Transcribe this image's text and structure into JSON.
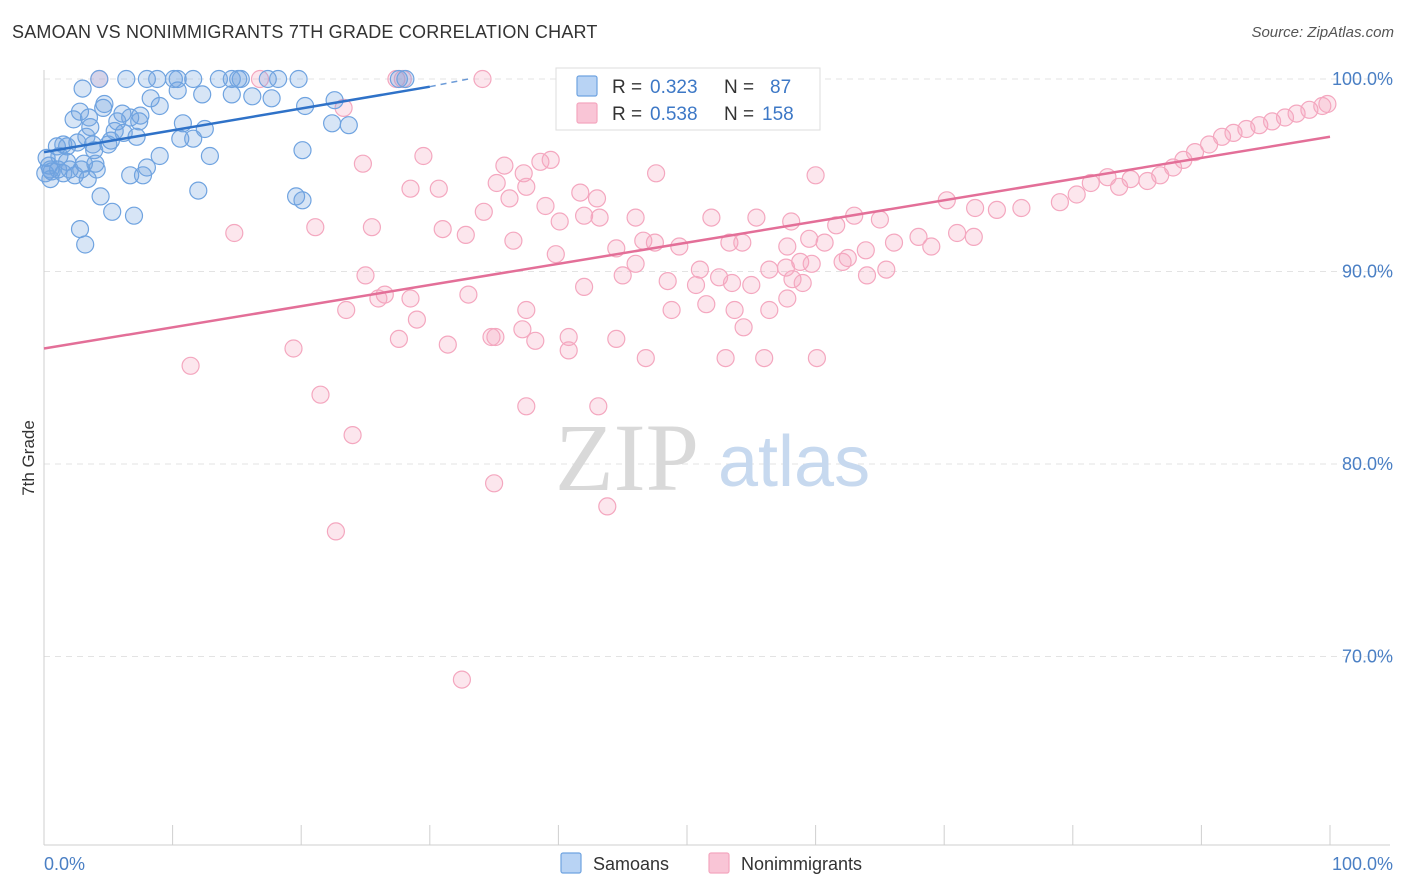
{
  "header": {
    "title": "SAMOAN VS NONIMMIGRANTS 7TH GRADE CORRELATION CHART",
    "source": "Source: ZipAtlas.com"
  },
  "watermark": {
    "zip": "ZIP",
    "atlas": "atlas"
  },
  "colors": {
    "samoans": "#6fa3e0",
    "samoans_line": "#2f72c8",
    "nonimmigrants": "#f4a7bf",
    "nonimmigrants_line": "#e36f98",
    "tick_text": "#4a7fc4",
    "grid": "#e3e3e3"
  },
  "stats": {
    "samoans": {
      "r_label": "R =",
      "r_value": "0.323",
      "n_label": "N =",
      "n_value": "87"
    },
    "nonimmigrants": {
      "r_label": "R =",
      "r_value": "0.538",
      "n_label": "N =",
      "n_value": "158"
    }
  },
  "chart_data": {
    "type": "scatter",
    "title": "SAMOAN VS NONIMMIGRANTS 7TH GRADE CORRELATION CHART",
    "xlabel": "",
    "ylabel": "7th Grade",
    "xlim": [
      0,
      100
    ],
    "ylim": [
      62,
      100.5
    ],
    "x_tick_labels": [
      "0.0%",
      "100.0%"
    ],
    "y_ticks": [
      {
        "value": 100,
        "label": "100.0%"
      },
      {
        "value": 90,
        "label": "90.0%"
      },
      {
        "value": 80,
        "label": "80.0%"
      },
      {
        "value": 70,
        "label": "70.0%"
      }
    ],
    "grid": true,
    "legend": "bottom",
    "series": [
      {
        "name": "Samoans",
        "color": "#6fa3e0",
        "trend": {
          "x": [
            0,
            30
          ],
          "y": [
            96.2,
            99.6
          ],
          "dashed_to": [
            33,
            100.0
          ]
        },
        "points": [
          [
            4.3,
            100
          ],
          [
            6.4,
            100
          ],
          [
            8.0,
            100
          ],
          [
            8.8,
            100
          ],
          [
            10.1,
            100
          ],
          [
            10.4,
            100
          ],
          [
            11.6,
            100
          ],
          [
            13.6,
            100
          ],
          [
            14.6,
            100
          ],
          [
            15.1,
            100
          ],
          [
            15.3,
            100
          ],
          [
            17.4,
            100
          ],
          [
            18.2,
            100
          ],
          [
            19.8,
            100
          ],
          [
            27.6,
            100
          ],
          [
            28.1,
            100
          ],
          [
            3.0,
            99.5
          ],
          [
            10.4,
            99.4
          ],
          [
            8.3,
            99.0
          ],
          [
            12.3,
            99.2
          ],
          [
            14.6,
            99.2
          ],
          [
            16.2,
            99.1
          ],
          [
            17.7,
            99.0
          ],
          [
            22.6,
            98.9
          ],
          [
            4.7,
            98.7
          ],
          [
            9.0,
            98.6
          ],
          [
            20.3,
            98.6
          ],
          [
            2.8,
            98.3
          ],
          [
            4.6,
            98.5
          ],
          [
            6.1,
            98.2
          ],
          [
            7.5,
            98.1
          ],
          [
            6.7,
            98.0
          ],
          [
            3.5,
            98.0
          ],
          [
            2.3,
            97.9
          ],
          [
            5.7,
            97.8
          ],
          [
            7.4,
            97.8
          ],
          [
            10.8,
            97.7
          ],
          [
            22.4,
            97.7
          ],
          [
            23.7,
            97.6
          ],
          [
            3.6,
            97.5
          ],
          [
            5.5,
            97.3
          ],
          [
            12.5,
            97.4
          ],
          [
            6.2,
            97.2
          ],
          [
            3.3,
            97.0
          ],
          [
            7.2,
            97.0
          ],
          [
            10.6,
            96.9
          ],
          [
            11.6,
            96.9
          ],
          [
            5.2,
            96.8
          ],
          [
            1.5,
            96.6
          ],
          [
            2.6,
            96.7
          ],
          [
            3.8,
            96.6
          ],
          [
            5.0,
            96.6
          ],
          [
            1.0,
            96.5
          ],
          [
            1.8,
            96.5
          ],
          [
            3.9,
            96.3
          ],
          [
            20.1,
            96.3
          ],
          [
            12.9,
            96.0
          ],
          [
            9.0,
            96.0
          ],
          [
            1.2,
            96.0
          ],
          [
            0.2,
            95.9
          ],
          [
            1.8,
            95.7
          ],
          [
            3.1,
            95.6
          ],
          [
            4.0,
            95.6
          ],
          [
            0.4,
            95.5
          ],
          [
            8.0,
            95.4
          ],
          [
            0.5,
            95.3
          ],
          [
            1.1,
            95.3
          ],
          [
            2.0,
            95.3
          ],
          [
            2.9,
            95.3
          ],
          [
            4.1,
            95.3
          ],
          [
            0.6,
            95.2
          ],
          [
            0.1,
            95.1
          ],
          [
            1.5,
            95.1
          ],
          [
            2.4,
            95.0
          ],
          [
            6.7,
            95.0
          ],
          [
            7.7,
            95.0
          ],
          [
            0.5,
            94.8
          ],
          [
            3.4,
            94.8
          ],
          [
            12.0,
            94.2
          ],
          [
            4.4,
            93.9
          ],
          [
            19.6,
            93.9
          ],
          [
            20.1,
            93.7
          ],
          [
            5.3,
            93.1
          ],
          [
            7.0,
            92.9
          ],
          [
            2.8,
            92.2
          ],
          [
            3.2,
            91.4
          ]
        ]
      },
      {
        "name": "Nonimmigrants",
        "color": "#f4a7bf",
        "trend": {
          "x": [
            0,
            100
          ],
          "y": [
            86.0,
            97.0
          ]
        },
        "points": [
          [
            4.3,
            100
          ],
          [
            16.8,
            100
          ],
          [
            27.4,
            100
          ],
          [
            27.9,
            100
          ],
          [
            34.1,
            100
          ],
          [
            23.3,
            98.5
          ],
          [
            29.5,
            96.0
          ],
          [
            24.8,
            95.6
          ],
          [
            38.6,
            95.7
          ],
          [
            39.4,
            95.8
          ],
          [
            35.8,
            95.5
          ],
          [
            37.3,
            95.1
          ],
          [
            35.2,
            94.6
          ],
          [
            37.5,
            94.4
          ],
          [
            47.6,
            95.1
          ],
          [
            41.7,
            94.1
          ],
          [
            28.5,
            94.3
          ],
          [
            30.7,
            94.3
          ],
          [
            43.0,
            93.8
          ],
          [
            36.2,
            93.8
          ],
          [
            39.0,
            93.4
          ],
          [
            34.2,
            93.1
          ],
          [
            42.0,
            92.9
          ],
          [
            43.2,
            92.8
          ],
          [
            46.0,
            92.8
          ],
          [
            40.1,
            92.6
          ],
          [
            51.9,
            92.8
          ],
          [
            55.4,
            92.8
          ],
          [
            58.1,
            92.6
          ],
          [
            63.0,
            92.9
          ],
          [
            65.0,
            92.7
          ],
          [
            70.2,
            93.7
          ],
          [
            72.4,
            93.3
          ],
          [
            74.1,
            93.2
          ],
          [
            76.0,
            93.3
          ],
          [
            79.0,
            93.6
          ],
          [
            80.3,
            94.0
          ],
          [
            81.4,
            94.6
          ],
          [
            82.7,
            94.9
          ],
          [
            83.6,
            94.4
          ],
          [
            84.5,
            94.8
          ],
          [
            85.8,
            94.7
          ],
          [
            86.8,
            95.0
          ],
          [
            87.8,
            95.4
          ],
          [
            88.6,
            95.8
          ],
          [
            89.5,
            96.2
          ],
          [
            90.6,
            96.6
          ],
          [
            91.6,
            97.0
          ],
          [
            92.5,
            97.2
          ],
          [
            93.5,
            97.4
          ],
          [
            94.5,
            97.6
          ],
          [
            95.5,
            97.8
          ],
          [
            96.5,
            98.0
          ],
          [
            97.4,
            98.2
          ],
          [
            98.4,
            98.4
          ],
          [
            99.4,
            98.6
          ],
          [
            99.8,
            98.7
          ],
          [
            14.8,
            92.0
          ],
          [
            21.1,
            92.3
          ],
          [
            25.5,
            92.3
          ],
          [
            31.0,
            92.2
          ],
          [
            32.8,
            91.9
          ],
          [
            36.5,
            91.6
          ],
          [
            46.6,
            91.6
          ],
          [
            47.5,
            91.5
          ],
          [
            49.4,
            91.3
          ],
          [
            53.3,
            91.5
          ],
          [
            54.3,
            91.5
          ],
          [
            57.8,
            91.3
          ],
          [
            59.5,
            91.7
          ],
          [
            61.6,
            92.4
          ],
          [
            63.9,
            91.1
          ],
          [
            66.1,
            91.5
          ],
          [
            68.0,
            91.8
          ],
          [
            69.0,
            91.3
          ],
          [
            71.0,
            92.0
          ],
          [
            72.3,
            91.8
          ],
          [
            60.7,
            91.5
          ],
          [
            62.5,
            90.7
          ],
          [
            51.0,
            90.1
          ],
          [
            56.4,
            90.1
          ],
          [
            50.7,
            89.3
          ],
          [
            58.2,
            89.6
          ],
          [
            52.5,
            89.7
          ],
          [
            53.5,
            89.4
          ],
          [
            62.1,
            90.5
          ],
          [
            44.5,
            91.2
          ],
          [
            39.8,
            90.9
          ],
          [
            46.0,
            90.4
          ],
          [
            48.5,
            89.5
          ],
          [
            55.0,
            89.3
          ],
          [
            57.7,
            90.2
          ],
          [
            58.8,
            90.5
          ],
          [
            59.7,
            90.4
          ],
          [
            65.5,
            90.1
          ],
          [
            64.0,
            89.8
          ],
          [
            25.0,
            89.8
          ],
          [
            26.5,
            88.8
          ],
          [
            28.5,
            88.6
          ],
          [
            33.0,
            88.8
          ],
          [
            42.0,
            89.2
          ],
          [
            51.5,
            88.3
          ],
          [
            53.7,
            88.0
          ],
          [
            56.4,
            88.0
          ],
          [
            57.8,
            88.6
          ],
          [
            59.0,
            89.4
          ],
          [
            45.0,
            89.8
          ],
          [
            26.0,
            88.6
          ],
          [
            23.5,
            88.0
          ],
          [
            29.0,
            87.5
          ],
          [
            37.5,
            88.0
          ],
          [
            37.2,
            87.0
          ],
          [
            40.8,
            86.6
          ],
          [
            44.5,
            86.5
          ],
          [
            46.8,
            85.5
          ],
          [
            54.4,
            87.1
          ],
          [
            53.0,
            85.5
          ],
          [
            56.0,
            85.5
          ],
          [
            60.1,
            85.5
          ],
          [
            31.4,
            86.2
          ],
          [
            34.8,
            86.6
          ],
          [
            38.2,
            86.4
          ],
          [
            35.1,
            86.6
          ],
          [
            19.4,
            86.0
          ],
          [
            11.4,
            85.1
          ],
          [
            21.5,
            83.6
          ],
          [
            37.5,
            83.0
          ],
          [
            43.1,
            83.0
          ],
          [
            24.0,
            81.5
          ],
          [
            35.0,
            79.0
          ],
          [
            43.8,
            77.8
          ],
          [
            22.7,
            76.5
          ],
          [
            32.5,
            68.8
          ],
          [
            40.8,
            85.9
          ],
          [
            48.8,
            88.0
          ],
          [
            27.6,
            86.5
          ],
          [
            60.0,
            95.0
          ]
        ]
      }
    ]
  }
}
